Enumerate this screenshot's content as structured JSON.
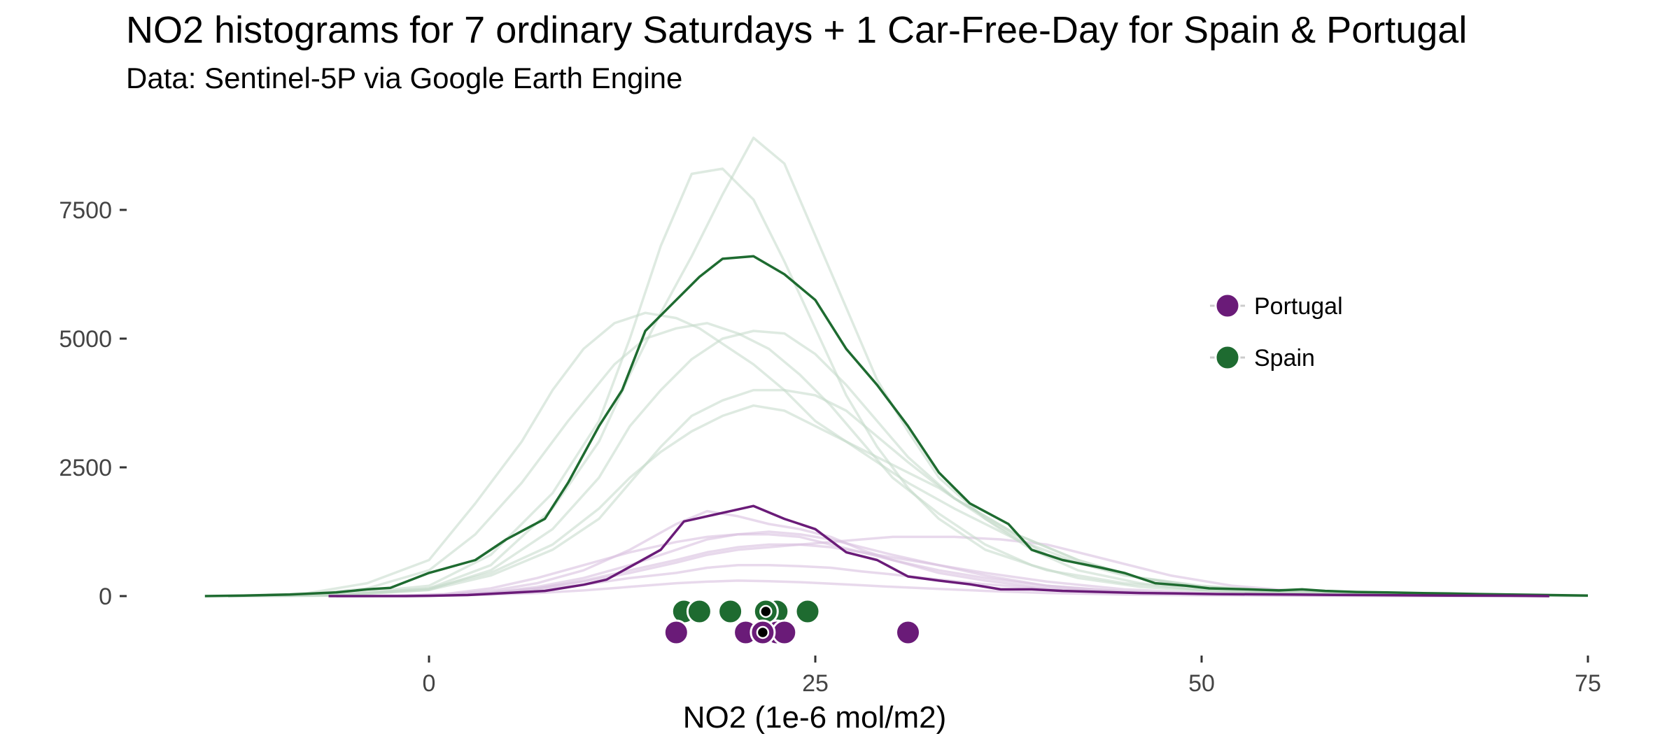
{
  "title": "NO2 histograms for 7 ordinary Saturdays + 1 Car-Free-Day for Spain & Portugal",
  "subtitle": "Data: Sentinel-5P via Google Earth Engine",
  "chart_data": {
    "type": "line",
    "title": "NO2 histograms for 7 ordinary Saturdays + 1 Car-Free-Day for Spain & Portugal",
    "subtitle": "Data: Sentinel-5P via Google Earth Engine",
    "xlabel": "NO2 (1e-6 mol/m2)",
    "ylabel": "",
    "xlim": [
      -15,
      75
    ],
    "ylim": [
      -1250,
      9000
    ],
    "xticks": [
      0,
      25,
      50,
      75
    ],
    "yticks": [
      0,
      2500,
      5000,
      7500
    ],
    "grid": false,
    "legend": {
      "position": "right",
      "entries": [
        {
          "label": "Portugal",
          "color": "#6a1b78"
        },
        {
          "label": "Spain",
          "color": "#1e6b30"
        }
      ]
    },
    "colors": {
      "Portugal": "#6a1b78",
      "Spain": "#1e6b30",
      "Portugal_faint": "#d9bfdf",
      "Spain_faint": "#c3d8c9",
      "median_dot": "#000000"
    },
    "series": [
      {
        "country": "Spain",
        "car_free_day": true,
        "x": [
          -14.5,
          -12,
          -9,
          -6,
          -4,
          -2.5,
          0,
          3,
          5,
          7.5,
          9,
          11,
          12.5,
          14,
          15.5,
          17.5,
          19,
          21,
          23,
          25,
          27,
          29,
          31,
          33,
          35,
          37.5,
          39,
          41,
          43.5,
          45,
          47,
          49,
          50.5,
          53,
          55,
          56.5,
          58,
          60,
          62,
          64,
          66,
          68,
          70,
          72.5,
          75
        ],
        "y": [
          0,
          10,
          30,
          70,
          130,
          160,
          450,
          700,
          1100,
          1500,
          2200,
          3300,
          4000,
          5150,
          5600,
          6200,
          6550,
          6600,
          6250,
          5750,
          4800,
          4100,
          3300,
          2400,
          1800,
          1400,
          900,
          700,
          550,
          450,
          250,
          200,
          150,
          130,
          110,
          130,
          100,
          80,
          70,
          60,
          50,
          40,
          30,
          20,
          10
        ]
      },
      {
        "country": "Portugal",
        "car_free_day": true,
        "x": [
          -6.5,
          -4,
          -1.5,
          0,
          2.5,
          5,
          7.5,
          10,
          11.5,
          13.5,
          15,
          16.5,
          18,
          19.5,
          21,
          23,
          25,
          27,
          29,
          31,
          33,
          35,
          37,
          39,
          41,
          43.5,
          46,
          48.5,
          51,
          53.5,
          56,
          58.5,
          61,
          63.5,
          66,
          68.5,
          71,
          72.5
        ],
        "y": [
          0,
          0,
          0,
          5,
          20,
          60,
          100,
          220,
          320,
          650,
          900,
          1450,
          1550,
          1650,
          1750,
          1500,
          1300,
          850,
          700,
          380,
          300,
          230,
          130,
          130,
          100,
          80,
          60,
          50,
          40,
          35,
          30,
          25,
          20,
          15,
          10,
          8,
          5,
          0
        ]
      },
      {
        "country": "Spain",
        "car_free_day": false,
        "x": [
          -13,
          -8,
          -4,
          0,
          3,
          6,
          9,
          12,
          14,
          16,
          18,
          20,
          22,
          24,
          26,
          28,
          30,
          33,
          36,
          39,
          42,
          46,
          50,
          55,
          60,
          65,
          70,
          75
        ],
        "y": [
          0,
          30,
          150,
          500,
          1200,
          2200,
          3400,
          4500,
          5000,
          5200,
          5300,
          5100,
          4800,
          4300,
          3700,
          3000,
          2300,
          1600,
          1000,
          600,
          350,
          180,
          100,
          60,
          40,
          30,
          15,
          5
        ]
      },
      {
        "country": "Spain",
        "car_free_day": false,
        "x": [
          -13,
          -8,
          -4,
          0,
          3,
          6,
          8,
          10,
          12,
          14,
          16,
          17.5,
          19,
          21,
          23,
          25,
          27,
          29,
          31,
          33,
          36,
          39,
          42,
          46,
          50,
          55,
          60,
          65,
          70,
          75
        ],
        "y": [
          0,
          50,
          250,
          700,
          1800,
          3000,
          4000,
          4800,
          5300,
          5500,
          5400,
          5200,
          4900,
          4500,
          4000,
          3400,
          3000,
          2700,
          2400,
          2100,
          1500,
          900,
          500,
          250,
          120,
          60,
          40,
          25,
          15,
          5
        ]
      },
      {
        "country": "Spain",
        "car_free_day": false,
        "x": [
          -13,
          -6,
          0,
          4,
          8,
          11,
          13,
          15,
          17,
          19,
          21,
          23,
          25,
          27,
          29,
          31,
          33,
          36,
          40,
          45,
          50,
          55,
          60,
          65,
          70,
          75
        ],
        "y": [
          0,
          20,
          200,
          800,
          2000,
          3400,
          5000,
          6800,
          8200,
          8300,
          7700,
          6500,
          5200,
          3900,
          2900,
          2100,
          1500,
          900,
          500,
          250,
          120,
          60,
          30,
          20,
          10,
          5
        ]
      },
      {
        "country": "Spain",
        "car_free_day": false,
        "x": [
          -13,
          -6,
          0,
          4,
          8,
          11,
          13,
          15,
          17,
          19,
          21,
          23,
          25,
          27,
          29,
          31,
          33,
          36,
          40,
          45,
          50,
          55,
          60,
          65,
          70,
          75
        ],
        "y": [
          0,
          10,
          150,
          600,
          1700,
          3000,
          4300,
          5500,
          6600,
          7800,
          8900,
          8400,
          7000,
          5600,
          4200,
          3200,
          2300,
          1500,
          800,
          400,
          200,
          100,
          60,
          30,
          20,
          5
        ]
      },
      {
        "country": "Spain",
        "car_free_day": false,
        "x": [
          -13,
          -6,
          0,
          4,
          8,
          11,
          13,
          15,
          17,
          19,
          21,
          23,
          25,
          27,
          29,
          31,
          34,
          38,
          42,
          46,
          50,
          55,
          60,
          65,
          70,
          75
        ],
        "y": [
          0,
          10,
          120,
          500,
          1300,
          2300,
          3300,
          4000,
          4600,
          5000,
          5150,
          5100,
          4700,
          4100,
          3400,
          2700,
          1900,
          1200,
          700,
          350,
          180,
          90,
          50,
          30,
          15,
          5
        ]
      },
      {
        "country": "Spain",
        "car_free_day": false,
        "x": [
          -13,
          -6,
          0,
          4,
          8,
          11,
          13,
          15,
          17,
          19,
          21,
          23,
          25,
          27,
          29,
          31,
          34,
          38,
          42,
          46,
          50,
          55,
          60,
          65,
          70,
          75
        ],
        "y": [
          0,
          20,
          150,
          450,
          1000,
          1700,
          2300,
          2800,
          3200,
          3500,
          3700,
          3600,
          3300,
          3000,
          2600,
          2200,
          1700,
          1100,
          650,
          350,
          180,
          90,
          50,
          30,
          15,
          5
        ]
      },
      {
        "country": "Spain",
        "car_free_day": false,
        "x": [
          -13,
          -6,
          0,
          4,
          8,
          11,
          13,
          15,
          17,
          19,
          21,
          23,
          25,
          27,
          29,
          31,
          34,
          38,
          42,
          46,
          50,
          55,
          60,
          65,
          70,
          75
        ],
        "y": [
          0,
          15,
          120,
          400,
          900,
          1500,
          2200,
          2900,
          3500,
          3800,
          4000,
          4000,
          3900,
          3600,
          3100,
          2600,
          1900,
          1200,
          700,
          350,
          180,
          90,
          50,
          30,
          15,
          5
        ]
      },
      {
        "country": "Portugal",
        "car_free_day": false,
        "x": [
          -6,
          -2,
          1,
          4,
          7,
          10,
          13,
          16,
          18,
          20,
          22,
          24,
          26,
          28,
          30,
          33,
          36,
          40,
          45,
          50,
          55,
          60,
          65,
          70,
          72.5
        ],
        "y": [
          0,
          5,
          30,
          100,
          250,
          500,
          900,
          1400,
          1650,
          1550,
          1400,
          1300,
          1150,
          900,
          700,
          450,
          300,
          150,
          70,
          40,
          20,
          10,
          5,
          3,
          0
        ]
      },
      {
        "country": "Portugal",
        "car_free_day": false,
        "x": [
          -6,
          -2,
          1,
          4,
          7,
          10,
          13,
          16,
          18,
          20,
          22,
          24,
          26,
          28,
          30,
          33,
          36,
          40,
          45,
          50,
          55,
          60,
          65,
          70,
          72.5
        ],
        "y": [
          0,
          5,
          20,
          70,
          180,
          350,
          600,
          900,
          1100,
          1200,
          1250,
          1200,
          1100,
          950,
          800,
          600,
          400,
          200,
          90,
          40,
          20,
          10,
          5,
          3,
          0
        ]
      },
      {
        "country": "Portugal",
        "car_free_day": false,
        "x": [
          -6,
          -2,
          1,
          4,
          7,
          10,
          13,
          16,
          18,
          20,
          22,
          24,
          26,
          28,
          30,
          33,
          36,
          40,
          45,
          50,
          55,
          60,
          65,
          70,
          72.5
        ],
        "y": [
          0,
          5,
          20,
          60,
          150,
          300,
          500,
          700,
          850,
          950,
          1000,
          1000,
          950,
          850,
          750,
          600,
          450,
          280,
          130,
          60,
          25,
          10,
          5,
          3,
          0
        ]
      },
      {
        "country": "Portugal",
        "car_free_day": false,
        "x": [
          -6,
          -2,
          1,
          4,
          7,
          10,
          13,
          16,
          18,
          20,
          22,
          24,
          26,
          28,
          30,
          32,
          34,
          37,
          40,
          44,
          48,
          52,
          56,
          60,
          65,
          70,
          72.5
        ],
        "y": [
          0,
          5,
          20,
          60,
          150,
          280,
          450,
          650,
          800,
          900,
          950,
          1000,
          1050,
          1100,
          1150,
          1150,
          1150,
          1100,
          1000,
          700,
          400,
          200,
          100,
          50,
          20,
          5,
          0
        ]
      },
      {
        "country": "Portugal",
        "car_free_day": false,
        "x": [
          -6,
          -2,
          1,
          4,
          7,
          10,
          13,
          16,
          18,
          20,
          22,
          24,
          26,
          28,
          30,
          33,
          36,
          40,
          45,
          50,
          55,
          60,
          65,
          70,
          72.5
        ],
        "y": [
          0,
          5,
          20,
          60,
          120,
          220,
          350,
          450,
          550,
          600,
          600,
          580,
          550,
          480,
          420,
          320,
          230,
          140,
          70,
          30,
          15,
          8,
          5,
          2,
          0
        ]
      },
      {
        "country": "Portugal",
        "car_free_day": false,
        "x": [
          -6,
          -2,
          1,
          4,
          7,
          10,
          13,
          16,
          18,
          20,
          22,
          24,
          26,
          28,
          30,
          33,
          36,
          40,
          45,
          50,
          55,
          60,
          65,
          70,
          72.5
        ],
        "y": [
          0,
          3,
          10,
          30,
          60,
          110,
          180,
          250,
          280,
          300,
          290,
          270,
          240,
          210,
          180,
          140,
          100,
          60,
          30,
          15,
          8,
          4,
          2,
          1,
          0
        ]
      },
      {
        "country": "Portugal",
        "car_free_day": false,
        "x": [
          -6,
          -2,
          1,
          4,
          7,
          10,
          13,
          16,
          18,
          20,
          22,
          24,
          26,
          28,
          30,
          33,
          36,
          40,
          45,
          50,
          55,
          60,
          65,
          70,
          72.5
        ],
        "y": [
          0,
          8,
          40,
          150,
          350,
          600,
          850,
          1050,
          1150,
          1200,
          1200,
          1150,
          1000,
          850,
          700,
          500,
          350,
          200,
          90,
          40,
          20,
          10,
          5,
          2,
          0
        ]
      }
    ],
    "medians": [
      {
        "country": "Spain",
        "x": 16.5,
        "car_free_day": false
      },
      {
        "country": "Spain",
        "x": 17.5,
        "car_free_day": false
      },
      {
        "country": "Spain",
        "x": 19.5,
        "car_free_day": false
      },
      {
        "country": "Spain",
        "x": 21.8,
        "car_free_day": true
      },
      {
        "country": "Spain",
        "x": 22.5,
        "car_free_day": false
      },
      {
        "country": "Spain",
        "x": 24.5,
        "car_free_day": false
      },
      {
        "country": "Portugal",
        "x": 16,
        "car_free_day": false
      },
      {
        "country": "Portugal",
        "x": 20.5,
        "car_free_day": false
      },
      {
        "country": "Portugal",
        "x": 22.5,
        "car_free_day": false
      },
      {
        "country": "Portugal",
        "x": 23,
        "car_free_day": false
      },
      {
        "country": "Portugal",
        "x": 21.6,
        "car_free_day": true
      },
      {
        "country": "Portugal",
        "x": 31,
        "car_free_day": false
      }
    ]
  }
}
